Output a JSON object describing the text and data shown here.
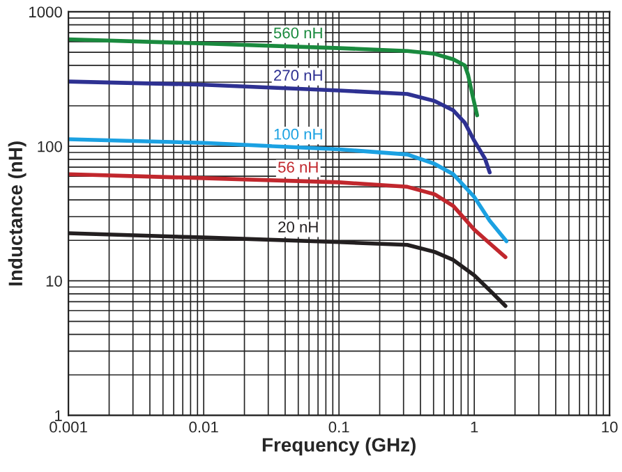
{
  "chart_data": {
    "type": "line",
    "xlabel": "Frequency (GHz)",
    "ylabel": "Inductance (nH)",
    "log": "xy",
    "grid": true,
    "legend": false,
    "marker": "none",
    "line_style": "solid",
    "xlim": [
      0.001,
      10
    ],
    "xticks": [
      {
        "value": 0.001,
        "label": "0.001"
      },
      {
        "value": 0.01,
        "label": "0.01"
      },
      {
        "value": 0.1,
        "label": "0.1"
      },
      1,
      10
    ],
    "ylim": [
      1,
      1000
    ],
    "yticks": [
      1,
      10,
      100,
      1000
    ],
    "series": [
      {
        "name": "560 nH",
        "color": "#1a8a3e",
        "x": [
          0.001,
          0.01,
          0.1,
          0.32,
          0.51,
          0.7,
          0.85,
          0.9,
          0.97,
          1.05
        ],
        "values": [
          624,
          581,
          537,
          511,
          487,
          443,
          400,
          340,
          240,
          170
        ]
      },
      {
        "name": "270 nH",
        "color": "#2e3192",
        "x": [
          0.001,
          0.01,
          0.1,
          0.32,
          0.51,
          0.7,
          0.85,
          1.0,
          1.2,
          1.3
        ],
        "values": [
          303,
          287,
          260,
          245,
          217,
          185,
          150,
          110,
          81,
          64
        ]
      },
      {
        "name": "100 nH",
        "color": "#1ba1e2",
        "x": [
          0.001,
          0.01,
          0.1,
          0.32,
          0.51,
          0.7,
          1.0,
          1.3,
          1.73
        ],
        "values": [
          113,
          106,
          95,
          87,
          74,
          62,
          42,
          28,
          19.7
        ]
      },
      {
        "name": "56 nH",
        "color": "#c1272d",
        "x": [
          0.001,
          0.01,
          0.1,
          0.32,
          0.51,
          0.7,
          1.0,
          1.3,
          1.7
        ],
        "values": [
          62,
          58,
          54,
          50,
          44,
          36,
          24,
          19,
          15
        ]
      },
      {
        "name": "20 nH",
        "color": "#231f20",
        "x": [
          0.001,
          0.01,
          0.1,
          0.32,
          0.51,
          0.7,
          1.0,
          1.3,
          1.7
        ],
        "values": [
          22.6,
          21,
          19.4,
          18.5,
          16.4,
          14.3,
          11,
          8.5,
          6.5
        ]
      }
    ]
  }
}
